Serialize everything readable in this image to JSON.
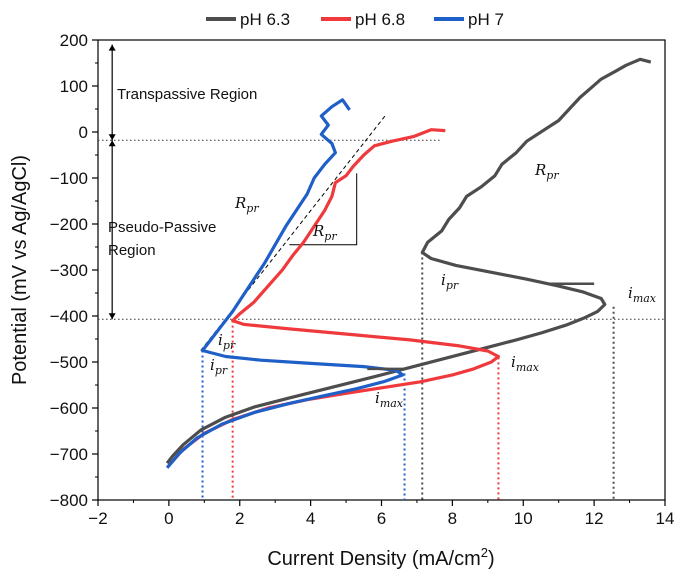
{
  "chart_data": {
    "type": "line",
    "xlabel_main": "Current Density (mA/cm",
    "xlabel_sup": "2",
    "xlabel_end": ")",
    "ylabel": "Potential (mV vs Ag/AgCl)",
    "xlim": [
      -2,
      14
    ],
    "ylim": [
      -800,
      200
    ],
    "xticks": [
      "−2",
      "0",
      "2",
      "4",
      "6",
      "8",
      "10",
      "12",
      "14"
    ],
    "yticks": [
      "−800",
      "−700",
      "−600",
      "−500",
      "−400",
      "−300",
      "−200",
      "−100",
      "0",
      "100",
      "200"
    ],
    "legend_position": "top",
    "series": [
      {
        "name": "pH 6.3",
        "color": "#4d4d4d",
        "points": [
          [
            -0.05,
            -720
          ],
          [
            0.1,
            -705
          ],
          [
            0.4,
            -680
          ],
          [
            0.9,
            -648
          ],
          [
            1.6,
            -620
          ],
          [
            2.4,
            -598
          ],
          [
            3.4,
            -578
          ],
          [
            4.6,
            -555
          ],
          [
            5.8,
            -532
          ],
          [
            7.0,
            -508
          ],
          [
            8.1,
            -486
          ],
          [
            9.0,
            -468
          ],
          [
            9.8,
            -452
          ],
          [
            10.5,
            -437
          ],
          [
            11.2,
            -420
          ],
          [
            11.7,
            -405
          ],
          [
            12.1,
            -390
          ],
          [
            12.3,
            -375
          ],
          [
            12.2,
            -362
          ],
          [
            11.7,
            -348
          ],
          [
            11.0,
            -335
          ],
          [
            10.1,
            -320
          ],
          [
            9.1,
            -305
          ],
          [
            8.1,
            -290
          ],
          [
            7.4,
            -275
          ],
          [
            7.15,
            -262
          ],
          [
            7.3,
            -240
          ],
          [
            7.7,
            -215
          ],
          [
            7.9,
            -190
          ],
          [
            8.2,
            -165
          ],
          [
            8.4,
            -140
          ],
          [
            8.8,
            -120
          ],
          [
            9.2,
            -95
          ],
          [
            9.4,
            -70
          ],
          [
            9.8,
            -45
          ],
          [
            10.1,
            -20
          ],
          [
            10.6,
            5
          ],
          [
            11.0,
            25
          ],
          [
            11.3,
            50
          ],
          [
            11.6,
            75
          ],
          [
            11.9,
            95
          ],
          [
            12.2,
            115
          ],
          [
            12.6,
            132
          ],
          [
            12.9,
            145
          ],
          [
            13.3,
            158
          ],
          [
            13.6,
            152
          ]
        ]
      },
      {
        "name": "pH 6.8",
        "color": "#f0393c",
        "points": [
          [
            0.0,
            -725
          ],
          [
            0.4,
            -690
          ],
          [
            1.0,
            -655
          ],
          [
            1.8,
            -625
          ],
          [
            2.8,
            -600
          ],
          [
            3.9,
            -582
          ],
          [
            5.0,
            -568
          ],
          [
            6.1,
            -555
          ],
          [
            7.1,
            -543
          ],
          [
            8.0,
            -528
          ],
          [
            8.6,
            -515
          ],
          [
            9.1,
            -500
          ],
          [
            9.3,
            -488
          ],
          [
            9.0,
            -476
          ],
          [
            8.2,
            -465
          ],
          [
            6.8,
            -452
          ],
          [
            5.1,
            -440
          ],
          [
            3.4,
            -428
          ],
          [
            2.1,
            -418
          ],
          [
            1.8,
            -410
          ],
          [
            2.0,
            -395
          ],
          [
            2.4,
            -370
          ],
          [
            2.8,
            -335
          ],
          [
            3.2,
            -300
          ],
          [
            3.5,
            -268
          ],
          [
            3.8,
            -240
          ],
          [
            4.1,
            -205
          ],
          [
            4.4,
            -170
          ],
          [
            4.6,
            -140
          ],
          [
            4.7,
            -110
          ],
          [
            5.0,
            -95
          ],
          [
            5.2,
            -75
          ],
          [
            5.5,
            -50
          ],
          [
            5.8,
            -30
          ],
          [
            6.3,
            -20
          ],
          [
            6.9,
            -10
          ],
          [
            7.4,
            5
          ],
          [
            7.8,
            3
          ]
        ]
      },
      {
        "name": "pH 7",
        "color": "#1f5fc8",
        "points": [
          [
            -0.05,
            -730
          ],
          [
            0.3,
            -698
          ],
          [
            0.8,
            -665
          ],
          [
            1.5,
            -635
          ],
          [
            2.4,
            -610
          ],
          [
            3.4,
            -590
          ],
          [
            4.4,
            -573
          ],
          [
            5.3,
            -558
          ],
          [
            6.1,
            -542
          ],
          [
            6.6,
            -528
          ],
          [
            6.4,
            -518
          ],
          [
            5.5,
            -510
          ],
          [
            4.0,
            -503
          ],
          [
            2.6,
            -496
          ],
          [
            1.6,
            -488
          ],
          [
            0.95,
            -475
          ],
          [
            1.2,
            -450
          ],
          [
            1.5,
            -420
          ],
          [
            1.8,
            -390
          ],
          [
            2.1,
            -355
          ],
          [
            2.4,
            -320
          ],
          [
            2.7,
            -285
          ],
          [
            3.0,
            -245
          ],
          [
            3.3,
            -205
          ],
          [
            3.6,
            -170
          ],
          [
            3.9,
            -135
          ],
          [
            4.1,
            -100
          ],
          [
            4.4,
            -70
          ],
          [
            4.7,
            -45
          ],
          [
            4.6,
            -25
          ],
          [
            4.3,
            -5
          ],
          [
            4.5,
            15
          ],
          [
            4.3,
            35
          ],
          [
            4.6,
            55
          ],
          [
            4.9,
            70
          ],
          [
            5.1,
            48
          ]
        ]
      }
    ],
    "annotations": {
      "transpassive": "Transpassive Region",
      "pseudo_passive_1": "Pseudo-Passive",
      "pseudo_passive_2": "Region",
      "i_sym": "i",
      "R_sym": "R",
      "sub_pr": "pr",
      "sub_max": "max"
    }
  }
}
